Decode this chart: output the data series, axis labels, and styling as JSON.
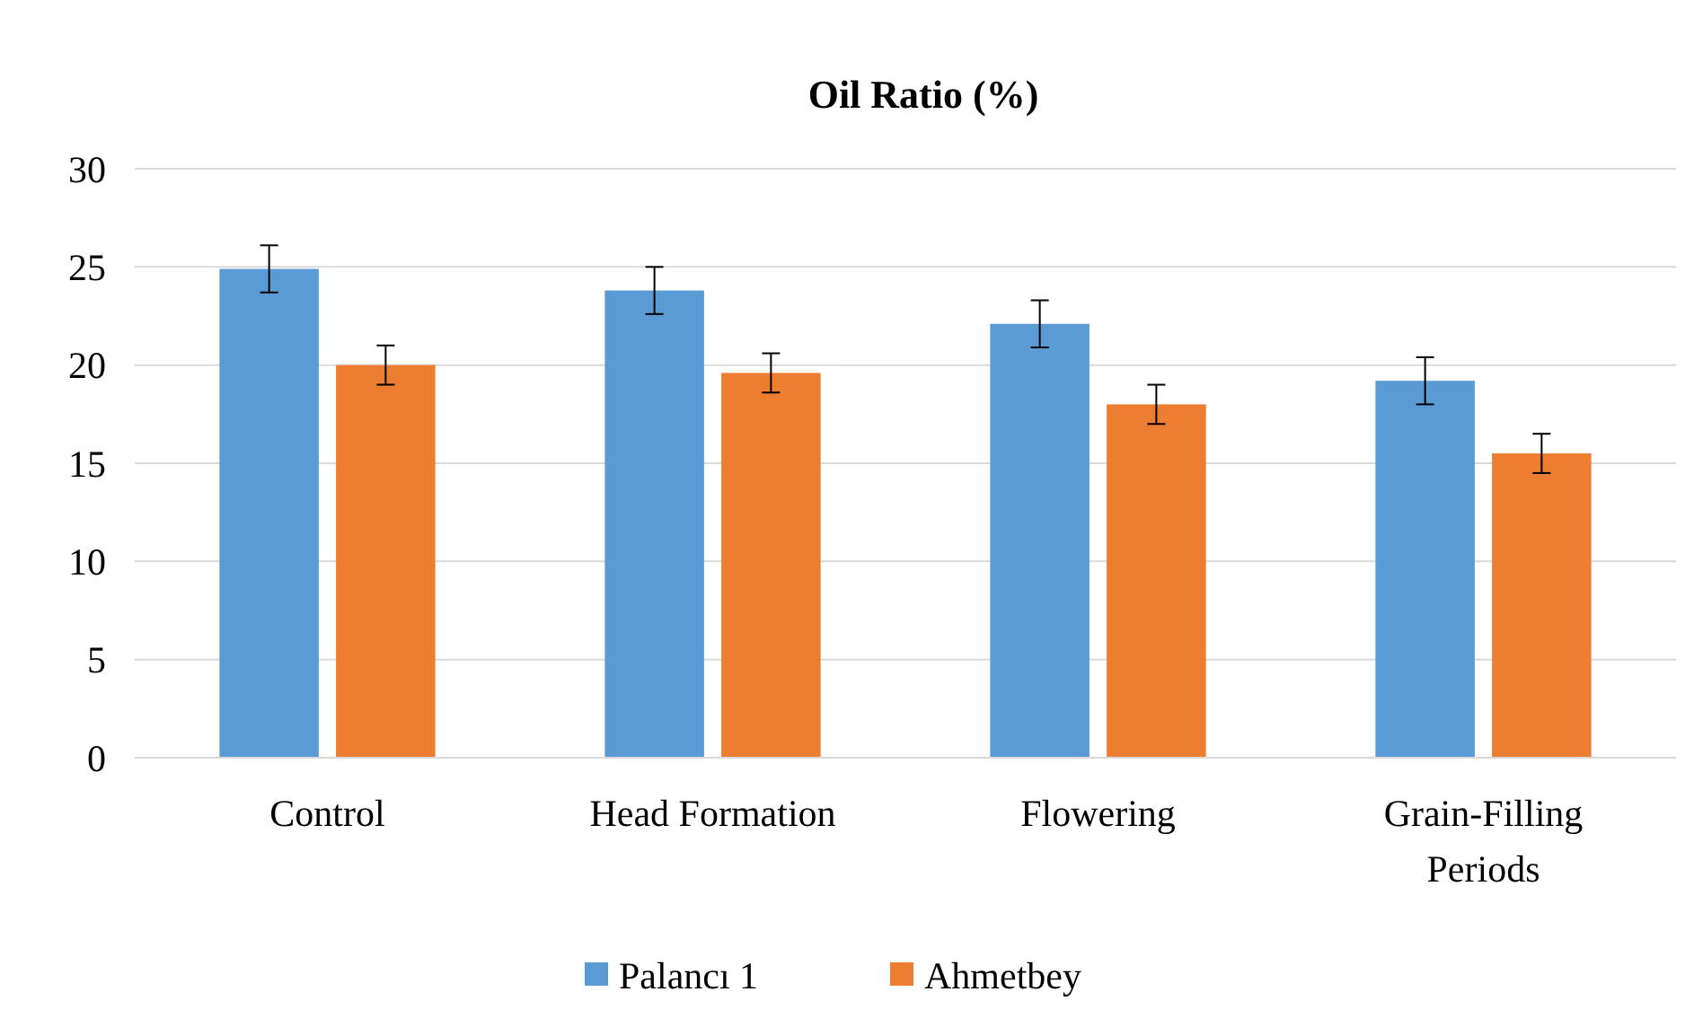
{
  "chart_data": {
    "type": "bar",
    "title": "Oil Ratio (%)",
    "categories": [
      "Control",
      "Head Formation",
      "Flowering",
      "Grain-Filling Periods"
    ],
    "series": [
      {
        "name": "Palancı 1",
        "color": "#5b9bd5",
        "values": [
          24.9,
          23.8,
          22.1,
          19.2
        ],
        "errors": [
          1.2,
          1.2,
          1.2,
          1.2
        ]
      },
      {
        "name": "Ahmetbey",
        "color": "#ed7d31",
        "values": [
          20.0,
          19.6,
          18.0,
          15.5
        ],
        "errors": [
          1.0,
          1.0,
          1.0,
          1.0
        ]
      }
    ],
    "ylim": [
      0,
      30
    ],
    "yticks": [
      0,
      5,
      10,
      15,
      20,
      25,
      30
    ],
    "grid": "y",
    "legend": "bottom"
  }
}
